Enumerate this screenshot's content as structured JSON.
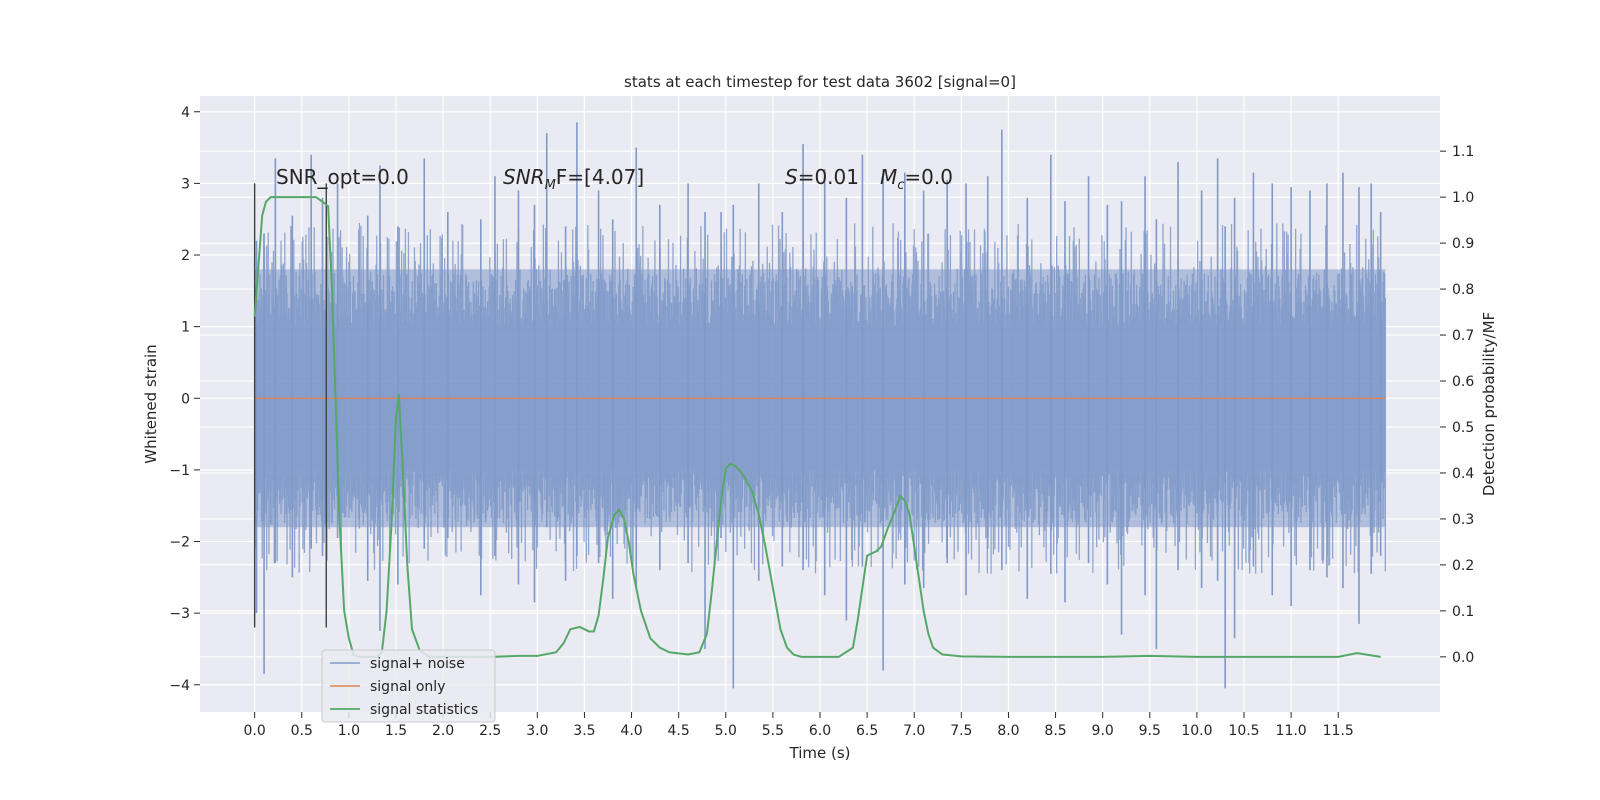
{
  "chart_data": {
    "type": "line",
    "title": "stats at each timestep for test data 3602 [signal=0]",
    "xlabel": "Time (s)",
    "ylabel": "Whitened strain",
    "y2label": "Detection probability/MF",
    "xlim": [
      -0.58,
      12.58
    ],
    "ylim": [
      -4.38,
      4.22
    ],
    "y2lim": [
      -0.12,
      1.22
    ],
    "x_ticks": [
      0.0,
      0.5,
      1.0,
      1.5,
      2.0,
      2.5,
      3.0,
      3.5,
      4.0,
      4.5,
      5.0,
      5.5,
      6.0,
      6.5,
      7.0,
      7.5,
      8.0,
      8.5,
      9.0,
      9.5,
      10.0,
      10.5,
      11.0,
      11.5
    ],
    "x_tick_labels": [
      "0.0",
      "0.5",
      "1.0",
      "1.5",
      "2.0",
      "2.5",
      "3.0",
      "3.5",
      "4.0",
      "4.5",
      "5.0",
      "5.5",
      "6.0",
      "6.5",
      "7.0",
      "7.5",
      "8.0",
      "8.5",
      "9.0",
      "9.5",
      "10.0",
      "10.5",
      "11.0",
      "11.5"
    ],
    "y_ticks": [
      -4,
      -3,
      -2,
      -1,
      0,
      1,
      2,
      3,
      4
    ],
    "y_tick_labels": [
      "−4",
      "−3",
      "−2",
      "−1",
      "0",
      "1",
      "2",
      "3",
      "4"
    ],
    "y2_ticks": [
      0.0,
      0.1,
      0.2,
      0.3,
      0.4,
      0.5,
      0.6,
      0.7,
      0.8,
      0.9,
      1.0,
      1.1
    ],
    "y2_tick_labels": [
      "0.0",
      "0.1",
      "0.2",
      "0.3",
      "0.4",
      "0.5",
      "0.6",
      "0.7",
      "0.8",
      "0.9",
      "1.0",
      "1.1"
    ],
    "grid": true,
    "legend_position": "lower-left",
    "series": [
      {
        "name": "signal+ noise",
        "color": "#7f99c8",
        "axis": "left",
        "x_range": [
          0.0,
          12.0
        ],
        "envelope_spikes": [
          {
            "x": 0.02,
            "top": 2.2,
            "bottom": -3.0
          },
          {
            "x": 0.1,
            "top": 2.3,
            "bottom": -3.85
          },
          {
            "x": 0.22,
            "top": 3.35,
            "bottom": -2.3
          },
          {
            "x": 0.4,
            "top": 2.55,
            "bottom": -2.5
          },
          {
            "x": 0.6,
            "top": 3.4,
            "bottom": -2.1
          },
          {
            "x": 0.72,
            "top": 2.8,
            "bottom": -2.2
          },
          {
            "x": 0.88,
            "top": 3.0,
            "bottom": -1.95
          },
          {
            "x": 1.2,
            "top": 2.55,
            "bottom": -2.55
          },
          {
            "x": 1.33,
            "top": 3.25,
            "bottom": -3.25
          },
          {
            "x": 1.52,
            "top": 2.4,
            "bottom": -2.6
          },
          {
            "x": 1.8,
            "top": 3.35,
            "bottom": -2.1
          },
          {
            "x": 2.05,
            "top": 2.6,
            "bottom": -1.95
          },
          {
            "x": 2.4,
            "top": 2.5,
            "bottom": -2.75
          },
          {
            "x": 2.55,
            "top": 3.1,
            "bottom": -2.2
          },
          {
            "x": 2.8,
            "top": 2.9,
            "bottom": -2.6
          },
          {
            "x": 2.97,
            "top": 2.7,
            "bottom": -2.85
          },
          {
            "x": 3.1,
            "top": 3.7,
            "bottom": -1.8
          },
          {
            "x": 3.3,
            "top": 2.4,
            "bottom": -2.55
          },
          {
            "x": 3.42,
            "top": 3.85,
            "bottom": -2.2
          },
          {
            "x": 3.65,
            "top": 2.9,
            "bottom": -2.3
          },
          {
            "x": 3.8,
            "top": 2.5,
            "bottom": -2.8
          },
          {
            "x": 4.05,
            "top": 3.5,
            "bottom": -2.65
          },
          {
            "x": 4.3,
            "top": 2.7,
            "bottom": -2.4
          },
          {
            "x": 4.6,
            "top": 3.0,
            "bottom": -2.3
          },
          {
            "x": 4.78,
            "top": 2.6,
            "bottom": -3.5
          },
          {
            "x": 4.95,
            "top": 2.6,
            "bottom": -1.95
          },
          {
            "x": 5.08,
            "top": 2.7,
            "bottom": -4.05
          },
          {
            "x": 5.35,
            "top": 3.0,
            "bottom": -2.55
          },
          {
            "x": 5.6,
            "top": 2.6,
            "bottom": -2.35
          },
          {
            "x": 5.82,
            "top": 3.55,
            "bottom": -2.4
          },
          {
            "x": 6.05,
            "top": 3.2,
            "bottom": -2.75
          },
          {
            "x": 6.28,
            "top": 2.8,
            "bottom": -3.1
          },
          {
            "x": 6.45,
            "top": 3.4,
            "bottom": -2.35
          },
          {
            "x": 6.67,
            "top": 3.2,
            "bottom": -3.8
          },
          {
            "x": 6.9,
            "top": 3.15,
            "bottom": -2.6
          },
          {
            "x": 7.1,
            "top": 2.9,
            "bottom": -2.65
          },
          {
            "x": 7.35,
            "top": 3.05,
            "bottom": -2.3
          },
          {
            "x": 7.55,
            "top": 3.0,
            "bottom": -2.75
          },
          {
            "x": 7.78,
            "top": 3.1,
            "bottom": -2.1
          },
          {
            "x": 7.93,
            "top": 3.75,
            "bottom": -2.4
          },
          {
            "x": 8.2,
            "top": 2.8,
            "bottom": -2.8
          },
          {
            "x": 8.45,
            "top": 3.4,
            "bottom": -2.45
          },
          {
            "x": 8.6,
            "top": 2.75,
            "bottom": -2.85
          },
          {
            "x": 8.85,
            "top": 3.1,
            "bottom": -2.3
          },
          {
            "x": 9.05,
            "top": 2.7,
            "bottom": -2.6
          },
          {
            "x": 9.2,
            "top": 2.75,
            "bottom": -3.3
          },
          {
            "x": 9.45,
            "top": 3.1,
            "bottom": -2.75
          },
          {
            "x": 9.57,
            "top": 2.5,
            "bottom": -3.5
          },
          {
            "x": 9.8,
            "top": 3.3,
            "bottom": -2.4
          },
          {
            "x": 10.05,
            "top": 2.9,
            "bottom": -2.65
          },
          {
            "x": 10.22,
            "top": 3.35,
            "bottom": -2.55
          },
          {
            "x": 10.3,
            "top": 2.4,
            "bottom": -4.05
          },
          {
            "x": 10.4,
            "top": 2.8,
            "bottom": -3.35
          },
          {
            "x": 10.6,
            "top": 3.15,
            "bottom": -2.35
          },
          {
            "x": 10.8,
            "top": 3.0,
            "bottom": -2.75
          },
          {
            "x": 11.0,
            "top": 2.95,
            "bottom": -2.9
          },
          {
            "x": 11.2,
            "top": 2.9,
            "bottom": -2.4
          },
          {
            "x": 11.38,
            "top": 3.0,
            "bottom": -2.5
          },
          {
            "x": 11.55,
            "top": 3.15,
            "bottom": -2.65
          },
          {
            "x": 11.72,
            "top": 2.95,
            "bottom": -3.15
          },
          {
            "x": 11.85,
            "top": 3.0,
            "bottom": -2.45
          },
          {
            "x": 11.95,
            "top": 2.6,
            "bottom": -2.2
          }
        ],
        "core_band": [
          -1.8,
          1.8
        ]
      },
      {
        "name": "signal only",
        "color": "#dd8452",
        "axis": "left",
        "x": [
          0.0,
          12.0
        ],
        "y": [
          0.0,
          0.0
        ]
      },
      {
        "name": "signal statistics",
        "color": "#55a868",
        "axis": "right",
        "x": [
          0.0,
          0.04,
          0.08,
          0.12,
          0.17,
          0.25,
          0.35,
          0.5,
          0.65,
          0.72,
          0.78,
          0.82,
          0.86,
          0.9,
          0.95,
          1.0,
          1.05,
          1.1,
          1.2,
          1.3,
          1.35,
          1.4,
          1.45,
          1.5,
          1.53,
          1.57,
          1.62,
          1.67,
          1.75,
          1.85,
          2.0,
          2.5,
          2.8,
          3.0,
          3.2,
          3.28,
          3.35,
          3.45,
          3.55,
          3.6,
          3.65,
          3.7,
          3.75,
          3.82,
          3.87,
          3.92,
          3.97,
          4.02,
          4.1,
          4.2,
          4.3,
          4.4,
          4.6,
          4.72,
          4.8,
          4.85,
          4.9,
          4.95,
          5.0,
          5.05,
          5.1,
          5.15,
          5.2,
          5.28,
          5.35,
          5.42,
          5.5,
          5.58,
          5.65,
          5.72,
          5.8,
          5.9,
          6.2,
          6.35,
          6.4,
          6.45,
          6.5,
          6.55,
          6.6,
          6.65,
          6.72,
          6.8,
          6.85,
          6.9,
          6.95,
          7.0,
          7.05,
          7.1,
          7.15,
          7.2,
          7.3,
          7.5,
          8.0,
          9.0,
          9.5,
          10.0,
          11.0,
          11.5,
          11.7,
          11.95
        ],
        "y": [
          0.74,
          0.85,
          0.96,
          0.99,
          1.0,
          1.0,
          1.0,
          1.0,
          1.0,
          0.99,
          0.98,
          0.8,
          0.55,
          0.3,
          0.1,
          0.04,
          0.005,
          0.0,
          0.0,
          0.0,
          0.01,
          0.1,
          0.28,
          0.52,
          0.57,
          0.42,
          0.2,
          0.06,
          0.015,
          0.0,
          0.0,
          0.0,
          0.002,
          0.002,
          0.01,
          0.03,
          0.06,
          0.065,
          0.055,
          0.055,
          0.09,
          0.17,
          0.26,
          0.31,
          0.32,
          0.3,
          0.25,
          0.18,
          0.1,
          0.04,
          0.02,
          0.01,
          0.005,
          0.01,
          0.05,
          0.14,
          0.24,
          0.34,
          0.41,
          0.42,
          0.415,
          0.405,
          0.39,
          0.36,
          0.31,
          0.24,
          0.15,
          0.06,
          0.02,
          0.005,
          0.0,
          0.0,
          0.0,
          0.02,
          0.08,
          0.15,
          0.22,
          0.225,
          0.23,
          0.24,
          0.28,
          0.32,
          0.35,
          0.34,
          0.31,
          0.24,
          0.17,
          0.1,
          0.05,
          0.02,
          0.005,
          0.001,
          0.0,
          0.0,
          0.002,
          0.0,
          0.0,
          0.0,
          0.008,
          0.0
        ]
      }
    ],
    "vertical_lines": [
      {
        "x": 0.0,
        "ymin": -3.2,
        "ymax": 3.0,
        "color": "#404040"
      },
      {
        "x": 0.76,
        "ymin": -3.2,
        "ymax": 3.0,
        "color": "#404040"
      }
    ],
    "annotations": [
      {
        "id": "snr-opt",
        "text": "SNR_opt=0.0",
        "x": 0.22,
        "y": 3.05
      },
      {
        "id": "snr-mf",
        "text_main": "SNR",
        "text_sub": "M",
        "text_tail": "F=[4.07]",
        "x": 2.6,
        "y": 3.05
      },
      {
        "id": "stat-s",
        "text_main": "S",
        "text_tail": "=0.01",
        "x": 5.6,
        "y": 3.05
      },
      {
        "id": "stat-mc",
        "text_main": "M",
        "text_sub": "c",
        "text_tail": "=0.0",
        "x": 6.6,
        "y": 3.05
      }
    ]
  }
}
